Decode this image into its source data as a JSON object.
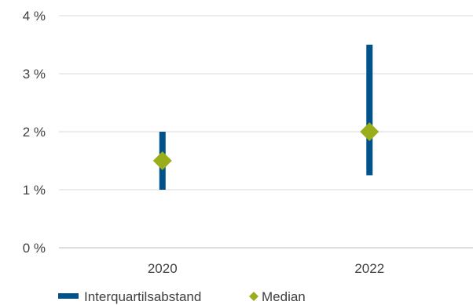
{
  "chart_data": {
    "type": "range",
    "categories": [
      "2020",
      "2022"
    ],
    "y_ticks": [
      "0 %",
      "1 %",
      "2 %",
      "3 %",
      "4 %"
    ],
    "ylim": [
      0,
      4
    ],
    "unit": "%",
    "grid": true,
    "legend_position": "bottom-left",
    "series": [
      {
        "name": "Interquartilsabstand",
        "kind": "range",
        "color": "#005288",
        "values": [
          [
            1.0,
            2.0
          ],
          [
            1.25,
            3.5
          ]
        ]
      },
      {
        "name": "Median",
        "kind": "marker",
        "color": "#9AAE1B",
        "marker": "diamond",
        "values": [
          1.5,
          2.0
        ]
      }
    ]
  }
}
